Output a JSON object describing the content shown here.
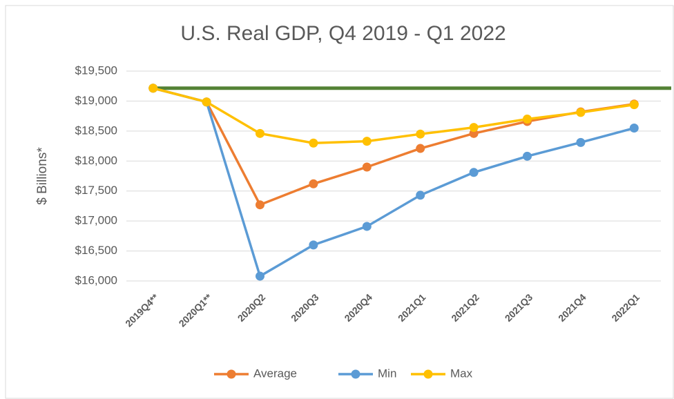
{
  "chart_data": {
    "type": "line",
    "title": "U.S. Real GDP, Q4 2019 - Q1 2022",
    "y_label": "$ Billions*",
    "categories": [
      "2019Q4**",
      "2020Q1**",
      "2020Q2",
      "2020Q3",
      "2020Q4",
      "2021Q1",
      "2021Q2",
      "2021Q3",
      "2021Q4",
      "2022Q1"
    ],
    "series": [
      {
        "name": "Average",
        "color": "#ed7d31",
        "values": [
          19215,
          18985,
          17270,
          17620,
          17900,
          18210,
          18460,
          18660,
          18820,
          18950
        ]
      },
      {
        "name": "Min",
        "color": "#5b9bd5",
        "values": [
          19215,
          18985,
          16080,
          16600,
          16910,
          17430,
          17810,
          18080,
          18310,
          18550
        ]
      },
      {
        "name": "Max",
        "color": "#ffc000",
        "values": [
          19215,
          18985,
          18460,
          18300,
          18330,
          18450,
          18560,
          18700,
          18810,
          18940
        ]
      }
    ],
    "reference_line": {
      "value": 19215,
      "color": "#548235"
    },
    "ylim": [
      16000,
      19500
    ],
    "yticks": [
      {
        "value": 16000,
        "label": "$16,000"
      },
      {
        "value": 16500,
        "label": "$16,500"
      },
      {
        "value": 17000,
        "label": "$17,000"
      },
      {
        "value": 17500,
        "label": "$17,500"
      },
      {
        "value": 18000,
        "label": "$18,000"
      },
      {
        "value": 18500,
        "label": "$18,500"
      },
      {
        "value": 19000,
        "label": "$19,000"
      },
      {
        "value": 19500,
        "label": "$19,500"
      }
    ],
    "grid": true,
    "legend": "bottom"
  }
}
